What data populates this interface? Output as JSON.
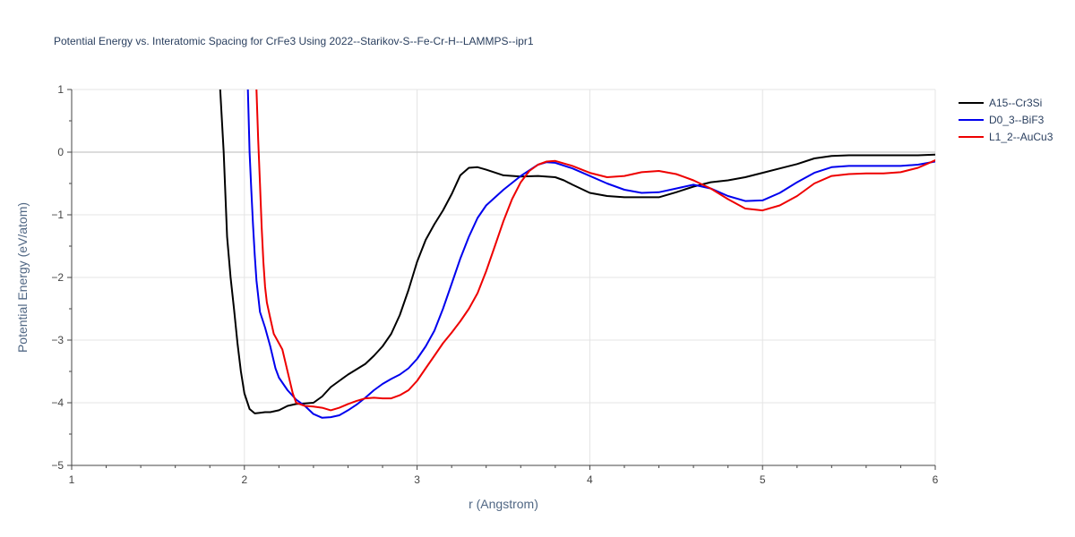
{
  "chart_data": {
    "type": "line",
    "title": "Potential Energy vs. Interatomic Spacing for CrFe3 Using 2022--Starikov-S--Fe-Cr-H--LAMMPS--ipr1",
    "xlabel": "r (Angstrom)",
    "ylabel": "Potential Energy (eV/atom)",
    "xlim": [
      1,
      6
    ],
    "ylim": [
      -5,
      1
    ],
    "xticks": [
      1,
      2,
      3,
      4,
      5,
      6
    ],
    "xtick_labels": [
      "1",
      "2",
      "3",
      "4",
      "5",
      "6"
    ],
    "yticks": [
      -5,
      -4,
      -3,
      -2,
      -1,
      0,
      1
    ],
    "ytick_labels": [
      "−5",
      "−4",
      "−3",
      "−2",
      "−1",
      "0",
      "1"
    ],
    "grid": true,
    "legend_position": "top-right",
    "series": [
      {
        "name": "A15--Cr3Si",
        "color": "#000000",
        "x": [
          1.86,
          1.88,
          1.9,
          1.92,
          1.94,
          1.96,
          1.98,
          2.0,
          2.03,
          2.06,
          2.09,
          2.12,
          2.15,
          2.2,
          2.25,
          2.3,
          2.35,
          2.4,
          2.45,
          2.5,
          2.55,
          2.6,
          2.7,
          2.75,
          2.8,
          2.85,
          2.9,
          2.95,
          3.0,
          3.05,
          3.1,
          3.15,
          3.2,
          3.25,
          3.3,
          3.35,
          3.4,
          3.5,
          3.6,
          3.7,
          3.8,
          3.85,
          3.9,
          4.0,
          4.1,
          4.2,
          4.3,
          4.4,
          4.5,
          4.6,
          4.7,
          4.8,
          4.9,
          5.0,
          5.1,
          5.2,
          5.3,
          5.4,
          5.5,
          5.6,
          5.7,
          5.8,
          5.9,
          6.0
        ],
        "y": [
          1.0,
          0.0,
          -1.35,
          -2.0,
          -2.5,
          -3.05,
          -3.5,
          -3.85,
          -4.1,
          -4.17,
          -4.16,
          -4.15,
          -4.15,
          -4.12,
          -4.05,
          -4.02,
          -4.01,
          -4.0,
          -3.9,
          -3.75,
          -3.65,
          -3.55,
          -3.38,
          -3.25,
          -3.1,
          -2.9,
          -2.6,
          -2.2,
          -1.75,
          -1.4,
          -1.15,
          -0.93,
          -0.67,
          -0.37,
          -0.25,
          -0.24,
          -0.28,
          -0.37,
          -0.39,
          -0.38,
          -0.4,
          -0.45,
          -0.52,
          -0.65,
          -0.7,
          -0.72,
          -0.72,
          -0.72,
          -0.64,
          -0.55,
          -0.48,
          -0.45,
          -0.4,
          -0.33,
          -0.26,
          -0.19,
          -0.1,
          -0.06,
          -0.05,
          -0.05,
          -0.05,
          -0.05,
          -0.05,
          -0.04
        ]
      },
      {
        "name": "D0_3--BiF3",
        "color": "#0000ee",
        "x": [
          2.02,
          2.03,
          2.04,
          2.05,
          2.06,
          2.07,
          2.09,
          2.12,
          2.15,
          2.18,
          2.2,
          2.25,
          2.3,
          2.35,
          2.4,
          2.45,
          2.5,
          2.55,
          2.6,
          2.65,
          2.7,
          2.75,
          2.8,
          2.85,
          2.9,
          2.95,
          3.0,
          3.05,
          3.1,
          3.15,
          3.2,
          3.25,
          3.3,
          3.35,
          3.4,
          3.5,
          3.6,
          3.7,
          3.75,
          3.8,
          3.9,
          4.0,
          4.1,
          4.2,
          4.3,
          4.4,
          4.5,
          4.6,
          4.7,
          4.8,
          4.9,
          5.0,
          5.1,
          5.2,
          5.3,
          5.4,
          5.5,
          5.6,
          5.7,
          5.8,
          5.9,
          6.0
        ],
        "y": [
          1.0,
          0.0,
          -0.6,
          -1.15,
          -1.65,
          -2.05,
          -2.55,
          -2.8,
          -3.1,
          -3.45,
          -3.6,
          -3.8,
          -3.95,
          -4.05,
          -4.18,
          -4.24,
          -4.23,
          -4.2,
          -4.12,
          -4.03,
          -3.92,
          -3.8,
          -3.7,
          -3.62,
          -3.55,
          -3.45,
          -3.3,
          -3.1,
          -2.85,
          -2.5,
          -2.1,
          -1.7,
          -1.35,
          -1.05,
          -0.85,
          -0.6,
          -0.38,
          -0.2,
          -0.16,
          -0.17,
          -0.26,
          -0.38,
          -0.5,
          -0.6,
          -0.65,
          -0.64,
          -0.58,
          -0.52,
          -0.58,
          -0.7,
          -0.78,
          -0.77,
          -0.65,
          -0.48,
          -0.33,
          -0.24,
          -0.22,
          -0.22,
          -0.22,
          -0.22,
          -0.2,
          -0.15
        ]
      },
      {
        "name": "L1_2--AuCu3",
        "color": "#ee0000",
        "x": [
          2.07,
          2.08,
          2.09,
          2.1,
          2.11,
          2.12,
          2.13,
          2.15,
          2.17,
          2.2,
          2.22,
          2.25,
          2.28,
          2.3,
          2.35,
          2.4,
          2.45,
          2.5,
          2.55,
          2.6,
          2.65,
          2.7,
          2.75,
          2.8,
          2.85,
          2.9,
          2.95,
          3.0,
          3.05,
          3.1,
          3.15,
          3.2,
          3.25,
          3.3,
          3.35,
          3.4,
          3.45,
          3.5,
          3.55,
          3.6,
          3.65,
          3.7,
          3.75,
          3.8,
          3.9,
          4.0,
          4.1,
          4.2,
          4.3,
          4.4,
          4.5,
          4.6,
          4.7,
          4.8,
          4.9,
          5.0,
          5.1,
          5.2,
          5.3,
          5.4,
          5.5,
          5.6,
          5.7,
          5.8,
          5.9,
          6.0
        ],
        "y": [
          1.0,
          0.2,
          -0.5,
          -1.2,
          -1.75,
          -2.15,
          -2.4,
          -2.65,
          -2.9,
          -3.05,
          -3.15,
          -3.5,
          -3.85,
          -4.0,
          -4.05,
          -4.06,
          -4.08,
          -4.12,
          -4.08,
          -4.02,
          -3.97,
          -3.93,
          -3.92,
          -3.93,
          -3.93,
          -3.88,
          -3.8,
          -3.65,
          -3.45,
          -3.25,
          -3.05,
          -2.88,
          -2.7,
          -2.5,
          -2.25,
          -1.9,
          -1.5,
          -1.1,
          -0.75,
          -0.48,
          -0.3,
          -0.2,
          -0.15,
          -0.14,
          -0.22,
          -0.33,
          -0.4,
          -0.38,
          -0.32,
          -0.3,
          -0.35,
          -0.45,
          -0.58,
          -0.75,
          -0.9,
          -0.93,
          -0.85,
          -0.7,
          -0.5,
          -0.38,
          -0.35,
          -0.34,
          -0.34,
          -0.32,
          -0.25,
          -0.13
        ]
      }
    ]
  }
}
